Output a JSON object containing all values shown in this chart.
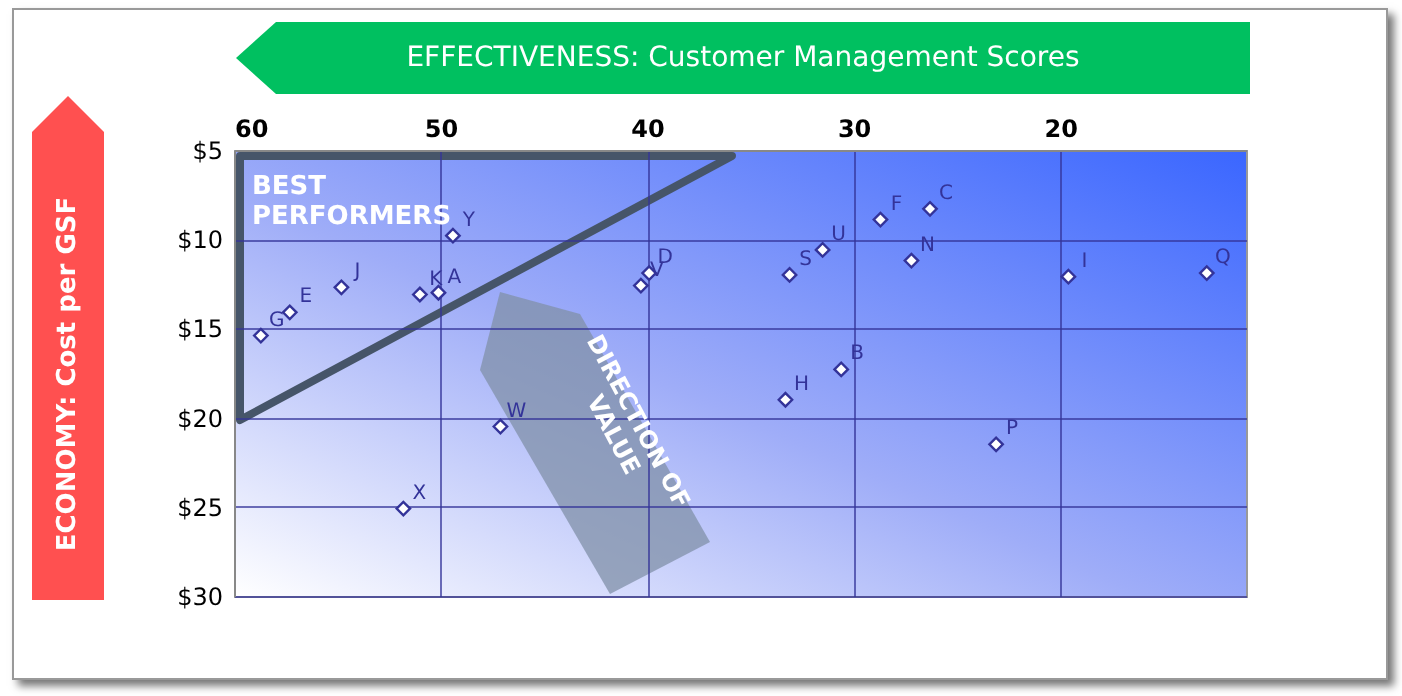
{
  "chart_data": {
    "type": "scatter",
    "xlabel": "EFFECTIVENESS: Customer Management Scores",
    "ylabel": "ECONOMY: Cost per GSF",
    "xlim": [
      60,
      11
    ],
    "xticks": [
      60,
      50,
      40,
      30,
      20
    ],
    "ylim": [
      30,
      5
    ],
    "yticks": [
      {
        "value": 5,
        "label": "$5"
      },
      {
        "value": 10,
        "label": "$10"
      },
      {
        "value": 15,
        "label": "$15"
      },
      {
        "value": 20,
        "label": "$20"
      },
      {
        "value": 25,
        "label": "$25"
      },
      {
        "value": 30,
        "label": "$30"
      }
    ],
    "grid": true,
    "legend": false,
    "marker": "diamond",
    "annotations": [
      "BEST PERFORMERS",
      "DIRECTION OF VALUE"
    ],
    "series": [
      {
        "name": "A",
        "color": "#333399",
        "x": [
          50.1
        ],
        "values": [
          13.0
        ]
      },
      {
        "name": "B",
        "color": "#333399",
        "x": [
          30.6
        ],
        "values": [
          17.3
        ]
      },
      {
        "name": "C",
        "color": "#333399",
        "x": [
          26.3
        ],
        "values": [
          8.3
        ]
      },
      {
        "name": "D",
        "color": "#333399",
        "x": [
          39.9
        ],
        "values": [
          11.9
        ]
      },
      {
        "name": "E",
        "color": "#333399",
        "x": [
          57.3
        ],
        "values": [
          14.1
        ]
      },
      {
        "name": "F",
        "color": "#333399",
        "x": [
          28.7
        ],
        "values": [
          8.9
        ]
      },
      {
        "name": "G",
        "color": "#333399",
        "x": [
          58.7
        ],
        "values": [
          15.4
        ]
      },
      {
        "name": "H",
        "color": "#333399",
        "x": [
          33.3
        ],
        "values": [
          19.0
        ]
      },
      {
        "name": "I",
        "color": "#333399",
        "x": [
          19.6
        ],
        "values": [
          12.1
        ]
      },
      {
        "name": "J",
        "color": "#333399",
        "x": [
          54.8
        ],
        "values": [
          12.7
        ]
      },
      {
        "name": "K",
        "color": "#333399",
        "x": [
          51.0
        ],
        "values": [
          13.1
        ]
      },
      {
        "name": "N",
        "color": "#333399",
        "x": [
          27.2
        ],
        "values": [
          11.2
        ]
      },
      {
        "name": "P",
        "color": "#333399",
        "x": [
          23.1
        ],
        "values": [
          21.5
        ]
      },
      {
        "name": "Q",
        "color": "#333399",
        "x": [
          12.9
        ],
        "values": [
          11.9
        ]
      },
      {
        "name": "S",
        "color": "#333399",
        "x": [
          33.1
        ],
        "values": [
          12.0
        ]
      },
      {
        "name": "U",
        "color": "#333399",
        "x": [
          31.5
        ],
        "values": [
          10.6
        ]
      },
      {
        "name": "V",
        "color": "#333399",
        "x": [
          40.3
        ],
        "values": [
          12.6
        ]
      },
      {
        "name": "W",
        "color": "#333399",
        "x": [
          47.1
        ],
        "values": [
          20.5
        ]
      },
      {
        "name": "X",
        "color": "#333399",
        "x": [
          51.8
        ],
        "values": [
          25.1
        ]
      },
      {
        "name": "Y",
        "color": "#333399",
        "x": [
          49.4
        ],
        "values": [
          9.8
        ]
      }
    ]
  }
}
